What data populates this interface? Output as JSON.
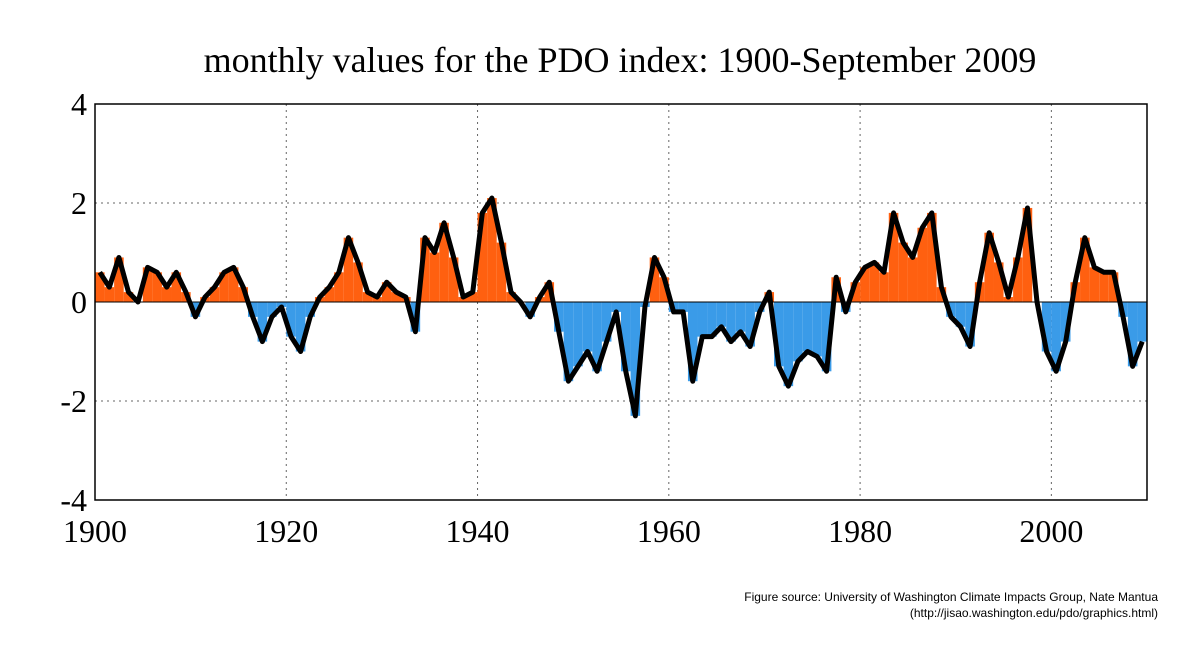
{
  "chart_data": {
    "type": "bar",
    "title": "monthly values for the PDO index: 1900-September 2009",
    "source_lines": [
      "Figure source: University of Washington Climate Impacts Group, Nate Mantua",
      "(http://jisao.washington.edu/pdo/graphics.html)"
    ],
    "x": [
      1900,
      1901,
      1902,
      1903,
      1904,
      1905,
      1906,
      1907,
      1908,
      1909,
      1910,
      1911,
      1912,
      1913,
      1914,
      1915,
      1916,
      1917,
      1918,
      1919,
      1920,
      1921,
      1922,
      1923,
      1924,
      1925,
      1926,
      1927,
      1928,
      1929,
      1930,
      1931,
      1932,
      1933,
      1934,
      1935,
      1936,
      1937,
      1938,
      1939,
      1940,
      1941,
      1942,
      1943,
      1944,
      1945,
      1946,
      1947,
      1948,
      1949,
      1950,
      1951,
      1952,
      1953,
      1954,
      1955,
      1956,
      1957,
      1958,
      1959,
      1960,
      1961,
      1962,
      1963,
      1964,
      1965,
      1966,
      1967,
      1968,
      1969,
      1970,
      1971,
      1972,
      1973,
      1974,
      1975,
      1976,
      1977,
      1978,
      1979,
      1980,
      1981,
      1982,
      1983,
      1984,
      1985,
      1986,
      1987,
      1988,
      1989,
      1990,
      1991,
      1992,
      1993,
      1994,
      1995,
      1996,
      1997,
      1998,
      1999,
      2000,
      2001,
      2002,
      2003,
      2004,
      2005,
      2006,
      2007,
      2008,
      2009
    ],
    "values": [
      0.6,
      0.3,
      0.9,
      0.2,
      0.0,
      0.7,
      0.6,
      0.3,
      0.6,
      0.2,
      -0.3,
      0.1,
      0.3,
      0.6,
      0.7,
      0.3,
      -0.3,
      -0.8,
      -0.3,
      -0.1,
      -0.7,
      -1.0,
      -0.3,
      0.1,
      0.3,
      0.6,
      1.3,
      0.8,
      0.2,
      0.1,
      0.4,
      0.2,
      0.1,
      -0.6,
      1.3,
      1.0,
      1.6,
      0.9,
      0.1,
      0.2,
      1.8,
      2.1,
      1.2,
      0.2,
      0.0,
      -0.3,
      0.1,
      0.4,
      -0.6,
      -1.6,
      -1.3,
      -1.0,
      -1.4,
      -0.8,
      -0.2,
      -1.4,
      -2.3,
      -0.1,
      0.9,
      0.5,
      -0.2,
      -0.2,
      -1.6,
      -0.7,
      -0.7,
      -0.5,
      -0.8,
      -0.6,
      -0.9,
      -0.2,
      0.2,
      -1.3,
      -1.7,
      -1.2,
      -1.0,
      -1.1,
      -1.4,
      0.5,
      -0.2,
      0.4,
      0.7,
      0.8,
      0.6,
      1.8,
      1.2,
      0.9,
      1.5,
      1.8,
      0.3,
      -0.3,
      -0.5,
      -0.9,
      0.4,
      1.4,
      0.8,
      0.1,
      0.9,
      1.9,
      0.0,
      -1.0,
      -1.4,
      -0.8,
      0.4,
      1.3,
      0.7,
      0.6,
      0.6,
      -0.3,
      -1.3,
      -0.8
    ],
    "positive_color": "#ff6010",
    "negative_color": "#3a9be8",
    "line_color": "#000000",
    "xlim": [
      1900,
      2010
    ],
    "xticks": [
      1900,
      1920,
      1940,
      1960,
      1980,
      2000
    ],
    "ylim": [
      -4,
      4
    ],
    "yticks": [
      -4,
      -2,
      0,
      2,
      4
    ],
    "grid": true
  }
}
